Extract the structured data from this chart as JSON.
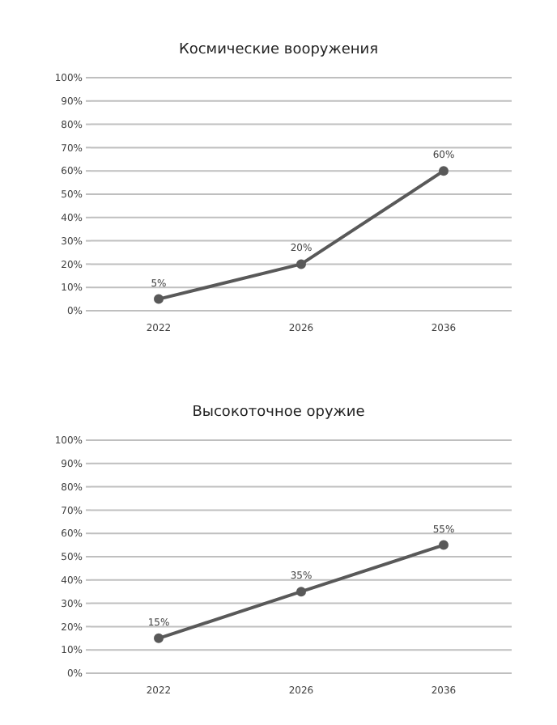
{
  "chart_data": [
    {
      "type": "line",
      "title": "Космические вооружения",
      "categories": [
        "2022",
        "2026",
        "2036"
      ],
      "values": [
        5,
        20,
        60
      ],
      "value_labels": [
        "5%",
        "20%",
        "60%"
      ],
      "color": "#595959",
      "ylim": [
        0,
        100
      ],
      "yticks": [
        {
          "value": 0,
          "label": "0%"
        },
        {
          "value": 10,
          "label": "10%"
        },
        {
          "value": 20,
          "label": "20%"
        },
        {
          "value": 30,
          "label": "30%"
        },
        {
          "value": 40,
          "label": "40%"
        },
        {
          "value": 50,
          "label": "50%"
        },
        {
          "value": 60,
          "label": "60%"
        },
        {
          "value": 70,
          "label": "70%"
        },
        {
          "value": 80,
          "label": "80%"
        },
        {
          "value": 90,
          "label": "90%"
        },
        {
          "value": 100,
          "label": "100%"
        }
      ],
      "grid": "y",
      "marker": "circle",
      "legend": false
    },
    {
      "type": "line",
      "title": "Высокоточное оружие",
      "categories": [
        "2022",
        "2026",
        "2036"
      ],
      "values": [
        15,
        35,
        55
      ],
      "value_labels": [
        "15%",
        "35%",
        "55%"
      ],
      "color": "#595959",
      "ylim": [
        0,
        100
      ],
      "yticks": [
        {
          "value": 0,
          "label": "0%"
        },
        {
          "value": 10,
          "label": "10%"
        },
        {
          "value": 20,
          "label": "20%"
        },
        {
          "value": 30,
          "label": "30%"
        },
        {
          "value": 40,
          "label": "40%"
        },
        {
          "value": 50,
          "label": "50%"
        },
        {
          "value": 60,
          "label": "60%"
        },
        {
          "value": 70,
          "label": "70%"
        },
        {
          "value": 80,
          "label": "80%"
        },
        {
          "value": 90,
          "label": "90%"
        },
        {
          "value": 100,
          "label": "100%"
        }
      ],
      "grid": "y",
      "marker": "circle",
      "legend": false
    }
  ]
}
